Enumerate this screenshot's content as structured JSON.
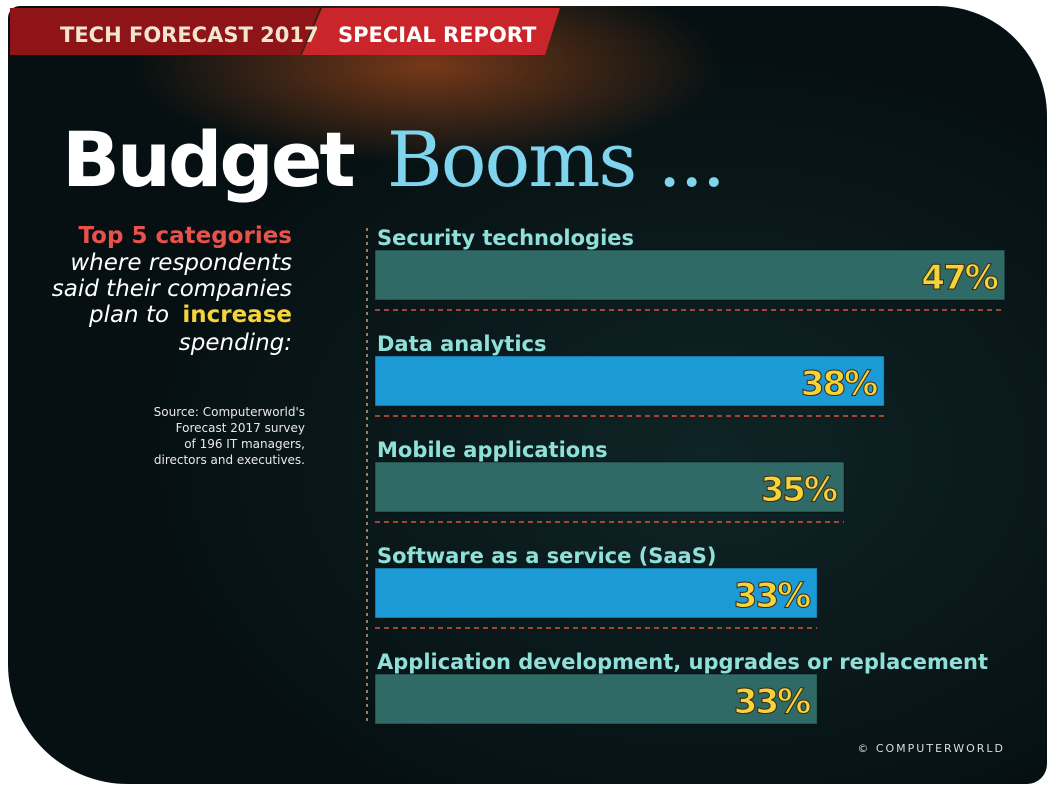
{
  "header": {
    "tag": "TECH FORECAST 2017",
    "section": "SPECIAL REPORT"
  },
  "chart_data": {
    "type": "bar",
    "orientation": "horizontal",
    "title": {
      "strong": "Budget",
      "light": "Booms ..."
    },
    "subtitle": {
      "highlight": "Top 5 categories",
      "lines": [
        "where respondents",
        "said their companies",
        "plan to"
      ],
      "emphasis": "increase",
      "end": "spending:"
    },
    "source": [
      "Source: Computerworld's",
      "Forecast 2017 survey",
      "of 196 IT managers,",
      "directors and executives."
    ],
    "categories": [
      "Security technologies",
      "Data analytics",
      "Mobile applications",
      "Software as a service (SaaS)",
      "Application development, upgrades or replacement"
    ],
    "values": [
      47,
      38,
      35,
      33,
      33
    ],
    "value_labels": [
      "47%",
      "38%",
      "35%",
      "33%",
      "33%"
    ],
    "colors": [
      "#2f6a66",
      "#1b9ad6",
      "#2f6a66",
      "#1b9ad6",
      "#2f6a66"
    ]
  },
  "footer": {
    "credit": "© COMPUTERWORLD"
  }
}
